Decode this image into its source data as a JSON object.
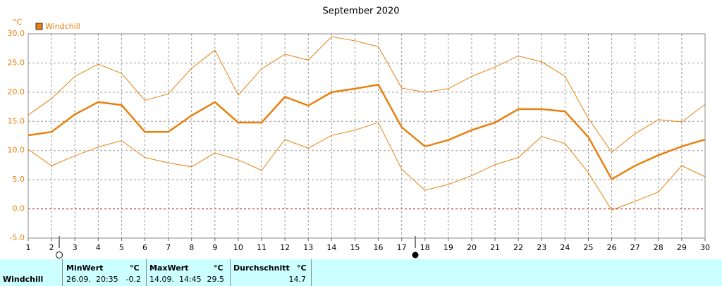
{
  "chart_data": {
    "type": "line",
    "title": "September 2020",
    "y_unit": "°C",
    "x": [
      1,
      2,
      3,
      4,
      5,
      6,
      7,
      8,
      9,
      10,
      11,
      12,
      13,
      14,
      15,
      16,
      17,
      18,
      19,
      20,
      21,
      22,
      23,
      24,
      25,
      26,
      27,
      28,
      29,
      30
    ],
    "xlim": [
      1,
      30
    ],
    "xticks": [
      1,
      2,
      3,
      4,
      5,
      6,
      7,
      8,
      9,
      10,
      11,
      12,
      13,
      14,
      15,
      16,
      17,
      18,
      19,
      20,
      21,
      22,
      23,
      24,
      25,
      26,
      27,
      28,
      29,
      30
    ],
    "ylim": [
      -5,
      30
    ],
    "yticks": [
      {
        "value": -5,
        "label": "-5.0"
      },
      {
        "value": 0,
        "label": "0.0"
      },
      {
        "value": 5,
        "label": "5.0"
      },
      {
        "value": 10,
        "label": "10.0"
      },
      {
        "value": 15,
        "label": "15.0"
      },
      {
        "value": 20,
        "label": "20.0"
      },
      {
        "value": 25,
        "label": "25.0"
      },
      {
        "value": 30,
        "label": "30.0"
      }
    ],
    "grid": true,
    "series": [
      {
        "name": "Windchill",
        "color": "#e8800e",
        "values": [
          12.6,
          13.2,
          16.2,
          18.3,
          17.8,
          13.2,
          13.2,
          16.0,
          18.3,
          14.8,
          14.8,
          19.2,
          17.7,
          20.0,
          20.6,
          21.3,
          14.0,
          10.7,
          11.8,
          13.5,
          14.8,
          17.1,
          17.1,
          16.7,
          12.3,
          5.1,
          7.4,
          9.2,
          10.7,
          11.9
        ]
      },
      {
        "color": "#e8800e",
        "values": [
          16.1,
          18.9,
          22.7,
          24.8,
          23.2,
          18.6,
          19.7,
          24.1,
          27.2,
          19.5,
          24.0,
          26.5,
          25.5,
          29.5,
          28.8,
          27.8,
          20.7,
          20.0,
          20.6,
          22.7,
          24.3,
          26.2,
          25.2,
          22.7,
          15.5,
          9.7,
          12.9,
          15.3,
          14.9,
          17.9
        ]
      },
      {
        "color": "#e8800e",
        "values": [
          10.2,
          7.4,
          9.1,
          10.6,
          11.7,
          8.8,
          7.9,
          7.2,
          9.6,
          8.4,
          6.6,
          11.9,
          10.4,
          12.6,
          13.5,
          14.8,
          6.8,
          3.2,
          4.2,
          5.7,
          7.6,
          8.8,
          12.4,
          11.2,
          6.2,
          -0.2,
          1.3,
          2.9,
          7.4,
          5.5
        ]
      }
    ]
  },
  "table": {
    "row_label": "Windchill",
    "columns": [
      {
        "header": "MinWert",
        "unit": "°C",
        "time": "26.09.  20:35",
        "value": -0.2
      },
      {
        "header": "MaxWert",
        "unit": "°C",
        "time": "14.09.  14:45",
        "value": 29.5
      },
      {
        "header": "Durchschnitt",
        "unit": "°C",
        "value": 14.7
      }
    ]
  }
}
